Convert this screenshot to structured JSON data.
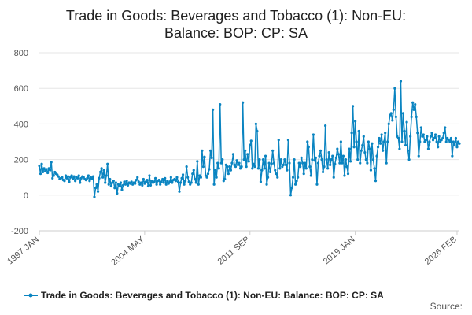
{
  "colors": {
    "series": "#0a84c1",
    "grid": "#e6e6e6",
    "axis": "#cccccc"
  },
  "chart_data": {
    "type": "line",
    "title": "Trade in Goods: Beverages and Tobacco (1): Non-EU: Balance: BOP: CP: SA",
    "title_lines": [
      "Trade in Goods: Beverages and Tobacco (1): Non-EU:",
      "Balance: BOP: CP: SA"
    ],
    "xlabel": "",
    "ylabel": "",
    "ylim": [
      -200,
      800
    ],
    "yticks": [
      -200,
      0,
      200,
      400,
      600,
      800
    ],
    "x_start": "1997 JAN",
    "x_end": "2026 FEB",
    "xticks": [
      {
        "label": "1997 JAN",
        "index": 0
      },
      {
        "label": "2004 MAY",
        "index": 88
      },
      {
        "label": "2011 SEP",
        "index": 176
      },
      {
        "label": "2019 JAN",
        "index": 264
      },
      {
        "label": "2026 FEB",
        "index": 349
      }
    ],
    "grid": true,
    "legend_position": "bottom",
    "series": [
      {
        "name": "Trade in Goods: Beverages and Tobacco (1): Non-EU: Balance: BOP: CP: SA",
        "values": [
          165,
          120,
          175,
          130,
          150,
          135,
          145,
          125,
          150,
          140,
          185,
          95,
          110,
          130,
          120,
          115,
          105,
          90,
          95,
          100,
          85,
          80,
          110,
          95,
          105,
          75,
          100,
          110,
          90,
          105,
          80,
          100,
          95,
          110,
          70,
          95,
          105,
          100,
          90,
          85,
          95,
          110,
          80,
          100,
          90,
          105,
          -10,
          40,
          60,
          20,
          95,
          130,
          150,
          100,
          140,
          70,
          110,
          175,
          60,
          90,
          50,
          70,
          80,
          40,
          70,
          10,
          60,
          50,
          70,
          30,
          55,
          75,
          60,
          80,
          55,
          70,
          65,
          75,
          60,
          70,
          65,
          85,
          100,
          75,
          60,
          70,
          55,
          90,
          65,
          75,
          85,
          50,
          110,
          55,
          80,
          70,
          75,
          95,
          60,
          80,
          85,
          60,
          75,
          90,
          70,
          95,
          60,
          80,
          65,
          75,
          100,
          70,
          85,
          90,
          80,
          100,
          75,
          20,
          70,
          95,
          115,
          60,
          80,
          160,
          100,
          75,
          60,
          70,
          120,
          140,
          90,
          70,
          190,
          60,
          110,
          100,
          250,
          160,
          215,
          110,
          100,
          120,
          145,
          250,
          210,
          480,
          60,
          140,
          100,
          180,
          150,
          510,
          180,
          200,
          80,
          90,
          170,
          160,
          120,
          160,
          140,
          180,
          230,
          170,
          160,
          195,
          170,
          180,
          150,
          160,
          520,
          200,
          250,
          160,
          230,
          190,
          280,
          305,
          150,
          175,
          160,
          400,
          360,
          150,
          200,
          75,
          140,
          200,
          150,
          220,
          60,
          100,
          180,
          130,
          175,
          250,
          180,
          140,
          120,
          100,
          310,
          150,
          200,
          160,
          170,
          200,
          170,
          140,
          310,
          180,
          0,
          40,
          100,
          200,
          60,
          80,
          100,
          180,
          160,
          210,
          180,
          120,
          180,
          150,
          300,
          270,
          160,
          110,
          200,
          340,
          195,
          210,
          60,
          180,
          220,
          250,
          200,
          130,
          160,
          390,
          200,
          150,
          240,
          170,
          200,
          220,
          100,
          175,
          210,
          260,
          230,
          180,
          300,
          180,
          220,
          110,
          200,
          160,
          120,
          260,
          190,
          350,
          500,
          270,
          415,
          300,
          200,
          360,
          180,
          250,
          280,
          330,
          240,
          200,
          180,
          300,
          260,
          140,
          290,
          200,
          150,
          80,
          220,
          270,
          320,
          290,
          340,
          250,
          300,
          350,
          180,
          300,
          400,
          450,
          460,
          420,
          480,
          600,
          440,
          330,
          320,
          260,
          640,
          300,
          460,
          360,
          280,
          410,
          250,
          200,
          330,
          440,
          520,
          480,
          510,
          440,
          350,
          220,
          300,
          380,
          330,
          340,
          300,
          310,
          330,
          260,
          300,
          330,
          350,
          310,
          320,
          340,
          300,
          270,
          330,
          300,
          310,
          320,
          350,
          380,
          300,
          320,
          310,
          300,
          320,
          220,
          300,
          280,
          320,
          270,
          300,
          290
        ]
      }
    ]
  },
  "legend": {
    "label": "Trade in Goods: Beverages and Tobacco (1): Non-EU: Balance: BOP: CP: SA"
  },
  "source": {
    "label": "Source:"
  }
}
